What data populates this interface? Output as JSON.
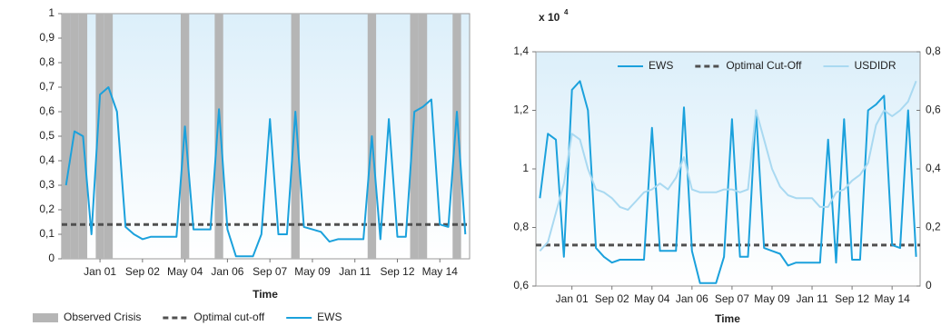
{
  "chart_data": [
    {
      "type": "line",
      "xlabel": "Time",
      "legend": "bottom",
      "categories": [
        null,
        null,
        null,
        null,
        "Jan 01",
        null,
        null,
        null,
        null,
        "Sep 02",
        null,
        null,
        null,
        null,
        "May 04",
        null,
        null,
        null,
        null,
        "Jan 06",
        null,
        null,
        null,
        null,
        "Sep 07",
        null,
        null,
        null,
        null,
        "May 09",
        null,
        null,
        null,
        null,
        "Jan 11",
        null,
        null,
        null,
        null,
        "Sep 12",
        null,
        null,
        null,
        null,
        "May 14",
        null,
        null,
        null
      ],
      "ylim": [
        0,
        1
      ],
      "yticks": [
        0,
        {
          "value": 0.1,
          "label": "0,1"
        },
        {
          "value": 0.2,
          "label": "0,2"
        },
        {
          "value": 0.3,
          "label": "0,3"
        },
        {
          "value": 0.4,
          "label": "0,4"
        },
        {
          "value": 0.5,
          "label": "0,5"
        },
        {
          "value": 0.6,
          "label": "0,6"
        },
        {
          "value": 0.7,
          "label": "0,7"
        },
        {
          "value": 0.8,
          "label": "0,8"
        },
        {
          "value": 0.9,
          "label": "0,9"
        },
        1
      ],
      "series": [
        {
          "name": "Observed Crisis",
          "style": "band",
          "color": "#b5b5b5",
          "values": [
            1,
            1,
            1,
            0,
            1,
            1,
            0,
            0,
            0,
            0,
            0,
            0,
            0,
            0,
            1,
            0,
            0,
            0,
            1,
            0,
            0,
            0,
            0,
            0,
            0,
            0,
            0,
            1,
            0,
            0,
            0,
            0,
            0,
            0,
            0,
            0,
            1,
            0,
            0,
            0,
            0,
            1,
            1,
            0,
            0,
            0,
            1,
            0
          ]
        },
        {
          "name": "EWS",
          "color": "#1ba1dc",
          "values": [
            0.3,
            0.52,
            0.5,
            0.1,
            0.67,
            0.7,
            0.6,
            0.13,
            0.1,
            0.08,
            0.09,
            0.09,
            0.09,
            0.09,
            0.54,
            0.12,
            0.12,
            0.12,
            0.61,
            0.12,
            0.01,
            0.01,
            0.01,
            0.1,
            0.57,
            0.1,
            0.1,
            0.6,
            0.13,
            0.12,
            0.11,
            0.07,
            0.08,
            0.08,
            0.08,
            0.08,
            0.5,
            0.08,
            0.57,
            0.09,
            0.09,
            0.6,
            0.62,
            0.65,
            0.14,
            0.13,
            0.6,
            0.1
          ]
        }
      ],
      "reference_line": {
        "name": "Optimal cut-off",
        "value": 0.14,
        "color": "#505050"
      }
    },
    {
      "type": "line",
      "xlabel": "Time",
      "ylabel": "x 10",
      "ylabel_exponent": "4",
      "legend": "top",
      "categories": [
        null,
        null,
        null,
        null,
        "Jan 01",
        null,
        null,
        null,
        null,
        "Sep 02",
        null,
        null,
        null,
        null,
        "May 04",
        null,
        null,
        null,
        null,
        "Jan 06",
        null,
        null,
        null,
        null,
        "Sep 07",
        null,
        null,
        null,
        null,
        "May 09",
        null,
        null,
        null,
        null,
        "Jan 11",
        null,
        null,
        null,
        null,
        "Sep 12",
        null,
        null,
        null,
        null,
        "May 14",
        null,
        null,
        null
      ],
      "ylim": [
        0.6,
        1.4
      ],
      "yticks": [
        {
          "value": 0.6,
          "label": "0,6"
        },
        {
          "value": 0.8,
          "label": "0,8"
        },
        1,
        {
          "value": 1.2,
          "label": "1,2"
        },
        {
          "value": 1.4,
          "label": "1,4"
        }
      ],
      "y2lim": [
        0,
        0.8
      ],
      "y2ticks": [
        0,
        {
          "value": 0.2,
          "label": "0,2"
        },
        {
          "value": 0.4,
          "label": "0,4"
        },
        {
          "value": 0.6,
          "label": "0,6"
        },
        {
          "value": 0.8,
          "label": "0,8"
        }
      ],
      "series": [
        {
          "name": "EWS",
          "axis": "y2",
          "color": "#1ba1dc",
          "values": [
            0.3,
            0.52,
            0.5,
            0.1,
            0.67,
            0.7,
            0.6,
            0.13,
            0.1,
            0.08,
            0.09,
            0.09,
            0.09,
            0.09,
            0.54,
            0.12,
            0.12,
            0.12,
            0.61,
            0.12,
            0.01,
            0.01,
            0.01,
            0.1,
            0.57,
            0.1,
            0.1,
            0.6,
            0.13,
            0.12,
            0.11,
            0.07,
            0.08,
            0.08,
            0.08,
            0.08,
            0.5,
            0.08,
            0.57,
            0.09,
            0.09,
            0.6,
            0.62,
            0.65,
            0.14,
            0.13,
            0.6,
            0.1
          ]
        },
        {
          "name": "USDIDR",
          "color": "#a9d9f1",
          "values": [
            0.72,
            0.75,
            0.85,
            0.95,
            1.12,
            1.1,
            1.0,
            0.93,
            0.92,
            0.9,
            0.87,
            0.86,
            0.89,
            0.92,
            0.93,
            0.95,
            0.93,
            0.97,
            1.04,
            0.93,
            0.92,
            0.92,
            0.92,
            0.93,
            0.93,
            0.92,
            0.93,
            1.2,
            1.1,
            1.0,
            0.94,
            0.91,
            0.9,
            0.9,
            0.9,
            0.87,
            0.87,
            0.92,
            0.93,
            0.96,
            0.98,
            1.02,
            1.15,
            1.2,
            1.18,
            1.2,
            1.23,
            1.3
          ]
        }
      ],
      "reference_line": {
        "name": "Optimal Cut-Off",
        "value": 0.14,
        "axis": "y2",
        "color": "#505050"
      }
    }
  ]
}
